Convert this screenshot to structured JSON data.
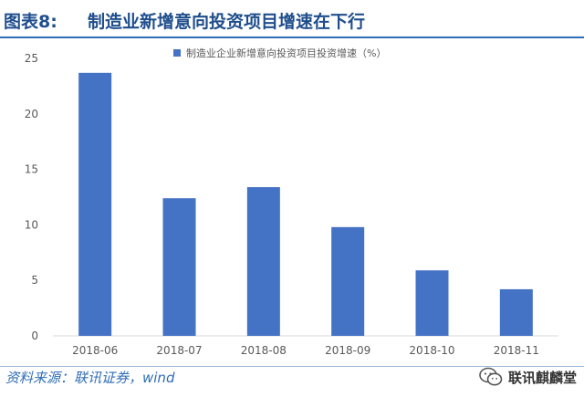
{
  "header": {
    "label": "图表8:",
    "title": "制造业新增意向投资项目增速在下行"
  },
  "footer": {
    "source": "资料来源：联讯证券，wind",
    "brand": "联讯麒麟堂",
    "brand_icon": "wechat-icon"
  },
  "colors": {
    "bar": "#4472C4",
    "title": "#1f4e8c",
    "axis_text": "#595959",
    "axis_line": "#d9d9d9"
  },
  "chart_data": {
    "type": "bar",
    "categories": [
      "2018-06",
      "2018-07",
      "2018-08",
      "2018-09",
      "2018-10",
      "2018-11"
    ],
    "series": [
      {
        "name": "制造业企业新增意向投资项目投资增速（%）",
        "values": [
          23.7,
          12.4,
          13.4,
          9.8,
          5.9,
          4.2
        ]
      }
    ],
    "yticks": [
      0,
      5,
      10,
      15,
      20,
      25
    ],
    "ylim": [
      0,
      25
    ],
    "grid": false,
    "legend": "top-center"
  }
}
